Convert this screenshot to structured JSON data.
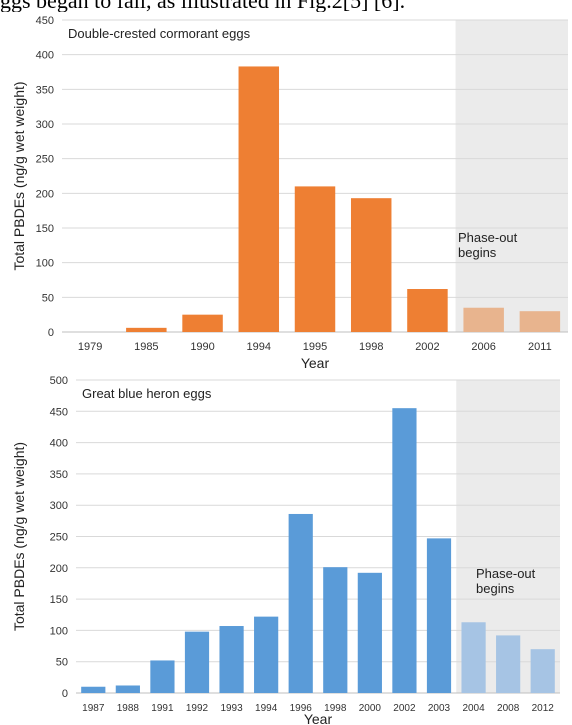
{
  "caption_text": "ggs began to fall, as illustrated in Fig.2[5] [6].",
  "chart_data": [
    {
      "type": "bar",
      "title": "Double-crested cormorant eggs",
      "xlabel": "Year",
      "ylabel": "Total PBDEs (ng/g wet weight)",
      "ylim": [
        0,
        450
      ],
      "yticks": [
        0,
        50,
        100,
        150,
        200,
        250,
        300,
        350,
        400,
        450
      ],
      "categories": [
        "1979",
        "1985",
        "1990",
        "1994",
        "1995",
        "1998",
        "2002",
        "2006",
        "2011"
      ],
      "values": [
        0,
        6,
        25,
        383,
        210,
        193,
        62,
        35,
        30
      ],
      "phase_out_from": "2006",
      "annotation": "Phase-out\nbegins",
      "bar_color": "#ee7f33",
      "faded_bar_color": "#e8b48e",
      "phase_out_shade": "#ebebeb",
      "grid": true
    },
    {
      "type": "bar",
      "title": "Great blue heron eggs",
      "xlabel": "Year",
      "ylabel": "Total PBDEs (ng/g wet weight)",
      "ylim": [
        0,
        500
      ],
      "yticks": [
        0,
        50,
        100,
        150,
        200,
        250,
        300,
        350,
        400,
        450,
        500
      ],
      "categories": [
        "1987",
        "1988",
        "1991",
        "1992",
        "1993",
        "1994",
        "1996",
        "1998",
        "2000",
        "2002",
        "2003",
        "2004",
        "2008",
        "2012"
      ],
      "values": [
        10,
        12,
        52,
        98,
        107,
        122,
        286,
        201,
        192,
        455,
        247,
        113,
        92,
        70
      ],
      "phase_out_from": "2004",
      "annotation": "Phase-out\nbegins",
      "bar_color": "#5a9bd8",
      "faded_bar_color": "#a6c4e4",
      "phase_out_shade": "#ebebeb",
      "grid": true
    }
  ]
}
